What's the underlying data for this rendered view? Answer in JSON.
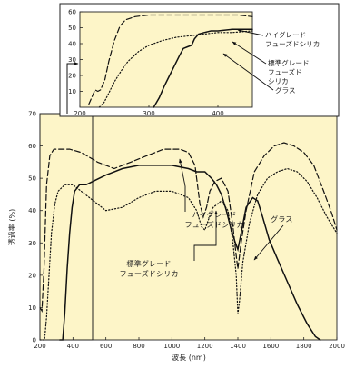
{
  "chart_data": [
    {
      "id": "main",
      "type": "line",
      "xlabel": "波長 (nm)",
      "ylabel": "透過率 (%)",
      "xlim": [
        200,
        2000
      ],
      "ylim": [
        0,
        70
      ],
      "xticks": [
        "200",
        "400",
        "600",
        "800",
        "1000",
        "1200",
        "1400",
        "1600",
        "1800",
        "2000"
      ],
      "yticks": [
        "0",
        "10",
        "20",
        "30",
        "40",
        "50",
        "60",
        "70"
      ],
      "series": [
        {
          "key": "high",
          "style": "dashed",
          "x": [
            200,
            212,
            225,
            240,
            260,
            285,
            320,
            380,
            450,
            550,
            650,
            750,
            850,
            950,
            1050,
            1100,
            1140,
            1170,
            1190,
            1210,
            1230,
            1260,
            1300,
            1340,
            1370,
            1390,
            1400,
            1420,
            1450,
            1500,
            1560,
            1620,
            1680,
            1740,
            1800,
            1860,
            1920,
            1970,
            2000
          ],
          "y": [
            10,
            9,
            22,
            48,
            57,
            59,
            59,
            59,
            58,
            55,
            53,
            55,
            57,
            59,
            59,
            58,
            54,
            42,
            38,
            41,
            46,
            49,
            50,
            46,
            35,
            26,
            22,
            30,
            40,
            52,
            57,
            60,
            61,
            60,
            58,
            54,
            46,
            39,
            34
          ]
        },
        {
          "key": "standard",
          "style": "dotted",
          "x": [
            200,
            228,
            240,
            255,
            270,
            290,
            310,
            350,
            400,
            450,
            500,
            600,
            700,
            800,
            900,
            1000,
            1100,
            1150,
            1180,
            1200,
            1220,
            1250,
            1300,
            1340,
            1370,
            1390,
            1400,
            1410,
            1430,
            1470,
            1520,
            1580,
            1640,
            1700,
            1760,
            1820,
            1880,
            1940,
            2000
          ],
          "y": [
            0,
            0,
            7,
            20,
            33,
            42,
            46,
            48,
            48,
            46,
            44,
            40,
            41,
            44,
            46,
            46,
            44,
            40,
            35,
            34,
            37,
            41,
            43,
            40,
            30,
            20,
            8,
            12,
            24,
            36,
            45,
            50,
            52,
            53,
            52,
            49,
            44,
            38,
            33
          ]
        },
        {
          "key": "glass",
          "style": "solid",
          "x": [
            320,
            338,
            350,
            365,
            380,
            395,
            410,
            440,
            480,
            520,
            600,
            700,
            800,
            900,
            1000,
            1100,
            1150,
            1200,
            1240,
            1270,
            1300,
            1330,
            1360,
            1385,
            1400,
            1420,
            1450,
            1490,
            1520,
            1550,
            1590,
            1640,
            1700,
            1760,
            1820,
            1870,
            1900
          ],
          "y": [
            0,
            0,
            8,
            22,
            33,
            41,
            46,
            48,
            48,
            49,
            51,
            53,
            54,
            54,
            54,
            53,
            52,
            52,
            50,
            48,
            45,
            40,
            34,
            30,
            28,
            33,
            41,
            44,
            43,
            38,
            31,
            25,
            18,
            11,
            5,
            1,
            0
          ]
        }
      ],
      "annotations": [
        {
          "key": "high",
          "lines": [
            "ハイグレード",
            "フューズドシリカ"
          ]
        },
        {
          "key": "standard",
          "lines": [
            "標準グレード",
            "フューズドシリカ"
          ]
        },
        {
          "key": "glass",
          "lines": [
            "グラス"
          ]
        }
      ]
    },
    {
      "id": "inset",
      "type": "line",
      "xlim": [
        200,
        450
      ],
      "ylim": [
        0,
        60
      ],
      "xticks": [
        "200",
        "300",
        "400"
      ],
      "yticks": [
        "10",
        "20",
        "30",
        "40",
        "50",
        "60"
      ],
      "series": [
        {
          "key": "high",
          "style": "dashed",
          "x": [
            213,
            218,
            222,
            226,
            230,
            236,
            242,
            250,
            258,
            266,
            280,
            300,
            330,
            360,
            400,
            430,
            450
          ],
          "y": [
            2,
            7,
            11,
            10,
            11,
            17,
            29,
            42,
            51,
            55,
            57,
            58,
            58,
            58,
            58,
            58,
            57
          ]
        },
        {
          "key": "standard",
          "style": "dotted",
          "x": [
            228,
            235,
            242,
            250,
            260,
            270,
            285,
            300,
            320,
            340,
            360,
            380,
            400,
            420,
            450
          ],
          "y": [
            0,
            3,
            9,
            16,
            23,
            29,
            35,
            39,
            42,
            44,
            45,
            46,
            47,
            47,
            48
          ]
        },
        {
          "key": "glass",
          "style": "solid",
          "x": [
            307,
            315,
            322,
            330,
            338,
            345,
            350,
            356,
            362,
            366,
            372,
            380,
            390,
            400,
            420,
            450
          ],
          "y": [
            0,
            6,
            13,
            20,
            27,
            33,
            37,
            38,
            39,
            43,
            46,
            47,
            48,
            48,
            49,
            49
          ]
        }
      ],
      "annotations": [
        {
          "key": "high",
          "lines": [
            "ハイグレード",
            "フューズドシリカ"
          ]
        },
        {
          "key": "standard",
          "lines": [
            "標準グレード",
            "フューズド",
            "シリカ"
          ]
        },
        {
          "key": "glass",
          "lines": [
            "グラス"
          ]
        }
      ]
    }
  ]
}
